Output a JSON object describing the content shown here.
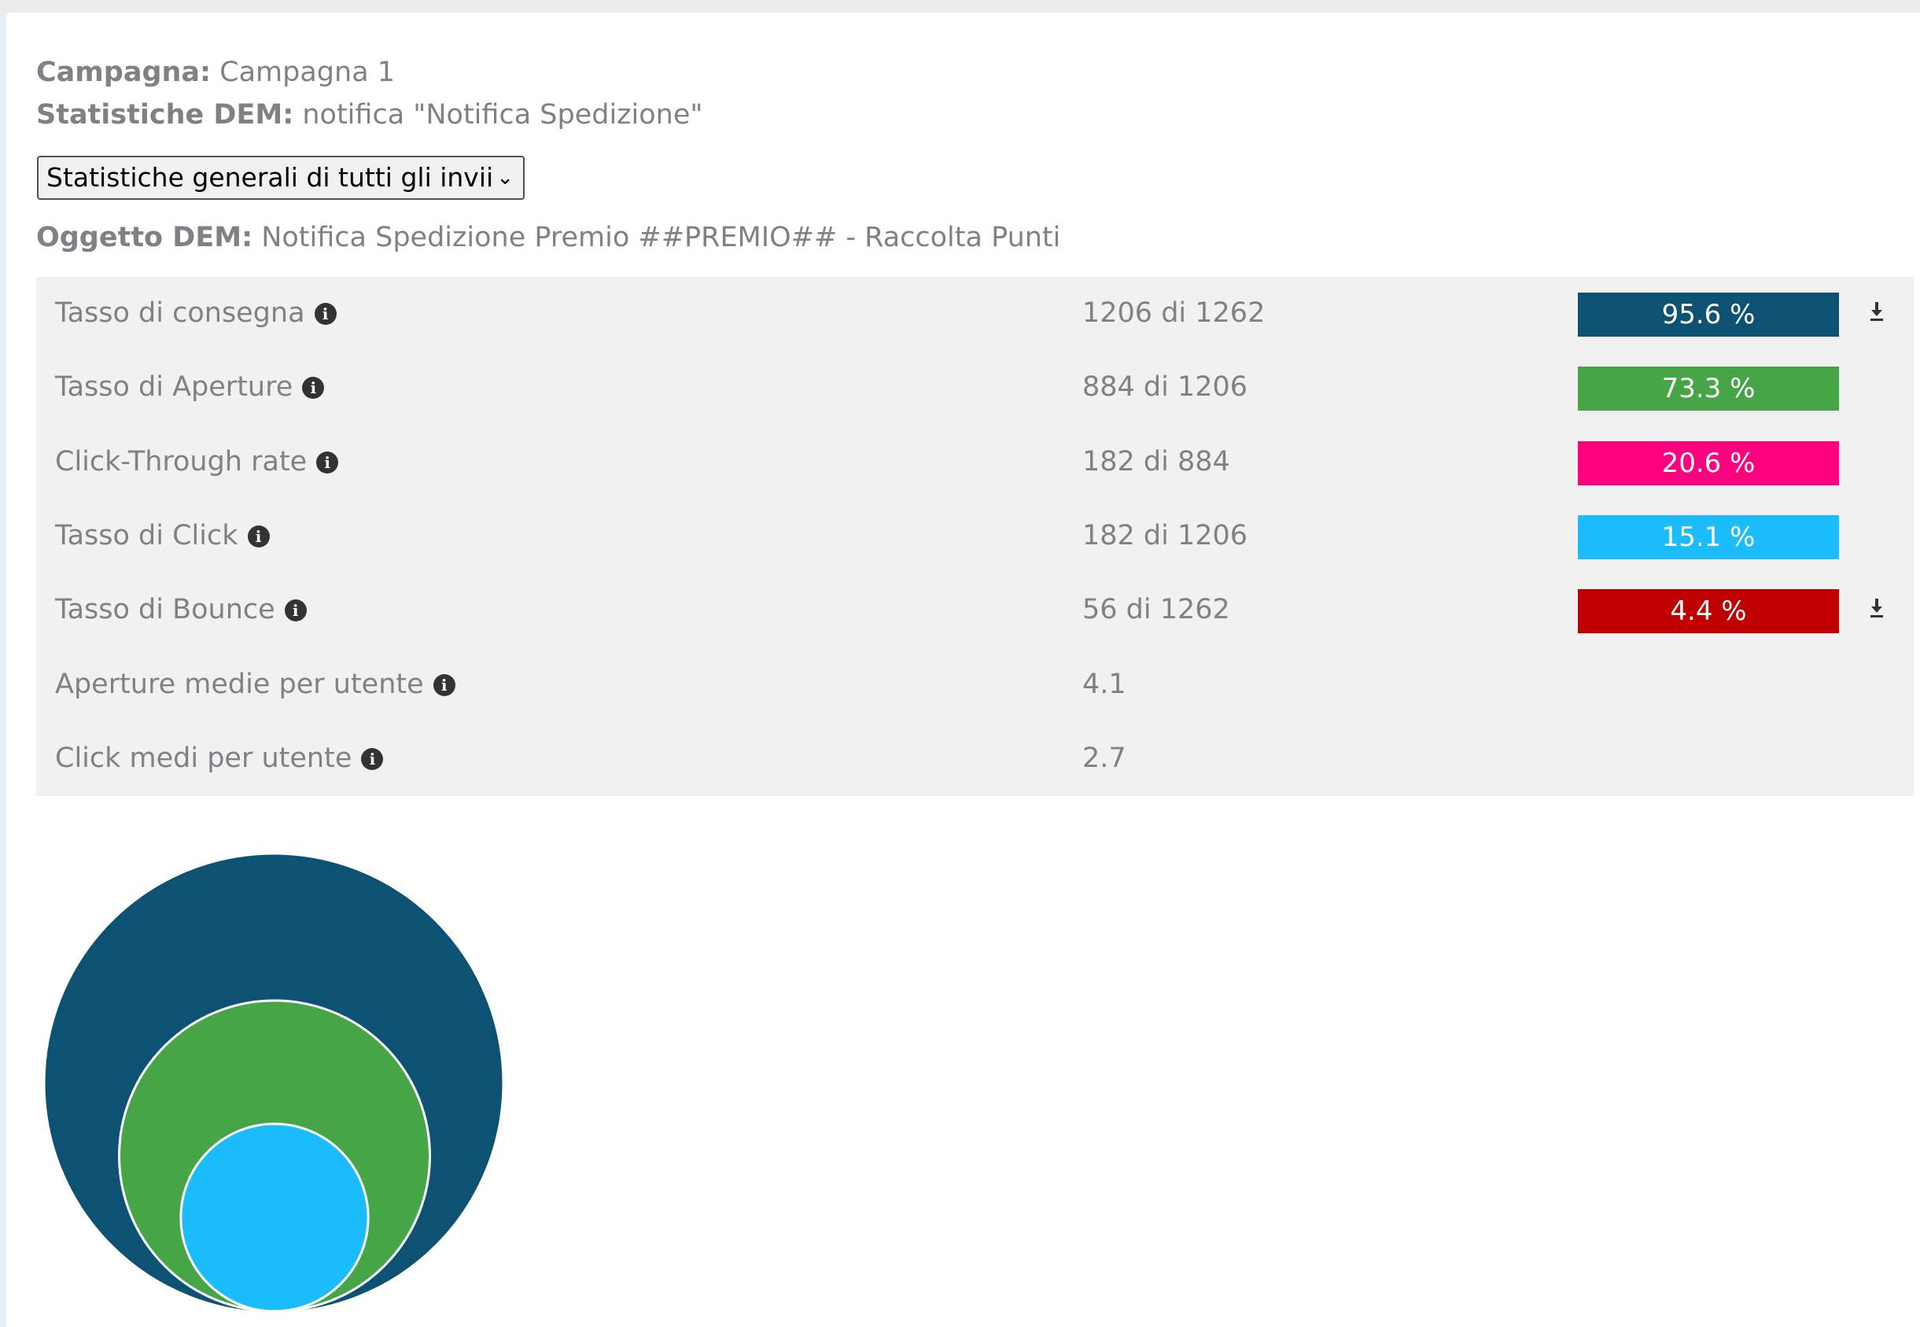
{
  "header": {
    "campaign_label": "Campagna:",
    "campaign_value": " Campagna 1",
    "stats_label": "Statistiche DEM:",
    "stats_value": " notifica \"Notifica Spedizione\"",
    "subject_label": "Oggetto DEM:",
    "subject_value": " Notifica Spedizione Premio ##PREMIO## - Raccolta Punti"
  },
  "select": {
    "selected": "Statistiche generali di tutti gli invii",
    "chevron": "⌄"
  },
  "stats": [
    {
      "label": "Tasso di consegna",
      "value": "1206 di 1262",
      "badge": "95.6 %",
      "color": "#0d5272",
      "download": true
    },
    {
      "label": "Tasso di Aperture",
      "value": "884 di 1206",
      "badge": "73.3 %",
      "color": "#46a546",
      "download": false
    },
    {
      "label": "Click-Through rate",
      "value": "182 di 884",
      "badge": "20.6 %",
      "color": "#ff0080",
      "download": false
    },
    {
      "label": "Tasso di Click",
      "value": "182 di 1206",
      "badge": "15.1 %",
      "color": "#1abcfc",
      "download": false
    },
    {
      "label": "Tasso di Bounce",
      "value": "56 di 1262",
      "badge": "4.4 %",
      "color": "#c00000",
      "download": true
    },
    {
      "label": "Aperture medie per utente",
      "value": "4.1",
      "badge": "",
      "color": "",
      "download": false
    },
    {
      "label": "Click medi per utente",
      "value": "2.7",
      "badge": "",
      "color": "",
      "download": false
    }
  ],
  "icons": {
    "info": "info-icon",
    "download": "download-icon"
  },
  "chart_data": {
    "type": "nested-circles",
    "circles": [
      {
        "metric": "Tasso di consegna",
        "count": 1206,
        "color": "#0d5272"
      },
      {
        "metric": "Tasso di Aperture",
        "count": 884,
        "color": "#46a546"
      },
      {
        "metric": "Tasso di Click",
        "count": 182,
        "color": "#1abcfc"
      }
    ]
  }
}
